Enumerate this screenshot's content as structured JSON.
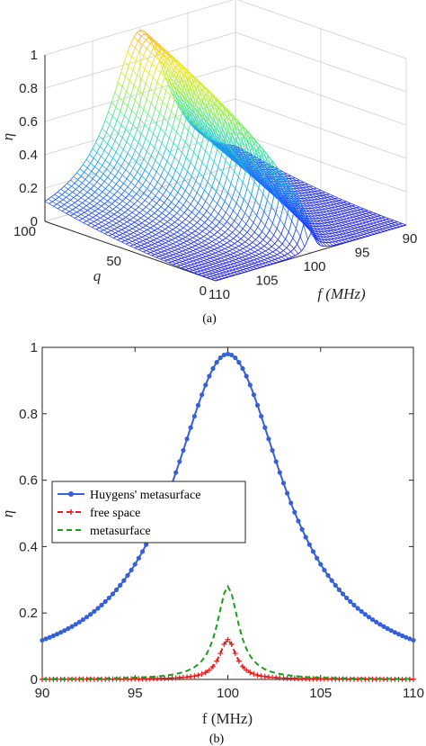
{
  "chart_data": [
    {
      "type": "surface",
      "caption": "(a)",
      "zlabel": "η",
      "xlabel": "f (MHz)",
      "ylabel": "q",
      "x_ticks": [
        "110",
        "105",
        "100",
        "95",
        "90"
      ],
      "y_ticks": [
        "0",
        "50",
        "100"
      ],
      "z_ticks": [
        "0",
        "0.2",
        "0.4",
        "0.6",
        "0.8",
        "1"
      ],
      "xlim": [
        90,
        110
      ],
      "ylim": [
        0,
        100
      ],
      "zlim": [
        0,
        1
      ],
      "colormap": [
        "#1a1aff",
        "#1e6bff",
        "#20c0e0",
        "#3ee8a0",
        "#a8f040",
        "#f5e820",
        "#f5a020"
      ],
      "peak": 0.98,
      "f0": 100
    },
    {
      "type": "line",
      "caption": "(b)",
      "xlabel": "f (MHz)",
      "ylabel": "η",
      "xlim": [
        90,
        110
      ],
      "ylim": [
        0,
        1
      ],
      "x_ticks": [
        "90",
        "95",
        "100",
        "105",
        "110"
      ],
      "y_ticks": [
        "0",
        "0.2",
        "0.4",
        "0.6",
        "0.8",
        "1"
      ],
      "legend_position": "middle-left",
      "series": [
        {
          "name": "Huygens' metasurface",
          "color": "#3560d8",
          "marker": "dot",
          "dash": "solid",
          "peak": 0.98,
          "half_width": 3.7
        },
        {
          "name": "free space",
          "color": "#e02020",
          "marker": "plus",
          "dash": "dashed",
          "peak": 0.12,
          "half_width": 0.55
        },
        {
          "name": "metasurface",
          "color": "#18a018",
          "marker": "none",
          "dash": "dashed",
          "peak": 0.28,
          "half_width": 0.7
        }
      ]
    }
  ]
}
